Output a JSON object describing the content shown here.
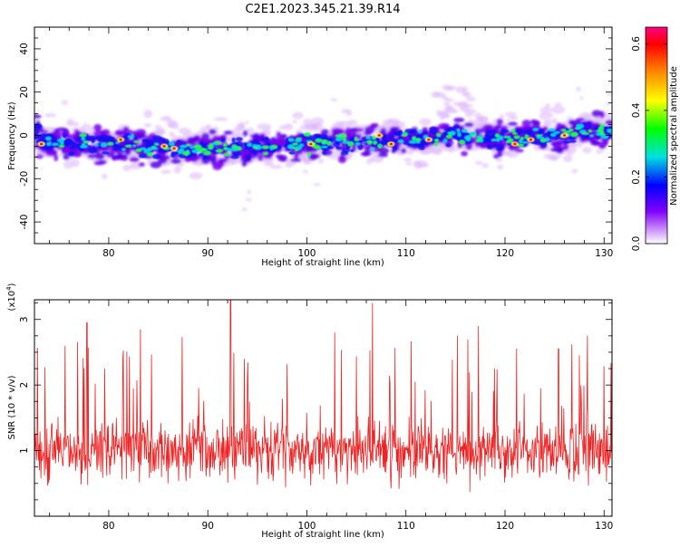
{
  "chart_data": [
    {
      "type": "heatmap",
      "title": "C2E1.2023.345.21.39.R14",
      "xlabel": "Height of straight line (km)",
      "ylabel": "Frequency (Hz)",
      "xlim": [
        72.5,
        130.8
      ],
      "ylim": [
        -50,
        50
      ],
      "xticks": [
        80,
        90,
        100,
        110,
        120,
        130
      ],
      "yticks": [
        -40,
        -20,
        0,
        20,
        40
      ],
      "colorbar": {
        "label": "Normalized spectral amplitude",
        "range": [
          0,
          0.65
        ],
        "ticks": [
          "0.0",
          "0.2",
          "0.4",
          "0.6"
        ],
        "colors": [
          "#ffffff",
          "#d8a8f8",
          "#8000ff",
          "#0000ff",
          "#00e0e0",
          "#00ff00",
          "#ffff00",
          "#ff8000",
          "#ff0000",
          "#ff0080"
        ]
      },
      "band_center_hz": [
        [
          73,
          -3
        ],
        [
          80,
          -4
        ],
        [
          90,
          -7
        ],
        [
          100,
          -4
        ],
        [
          110,
          -2
        ],
        [
          115,
          0
        ],
        [
          120,
          -2
        ],
        [
          130,
          2
        ]
      ]
    },
    {
      "type": "line",
      "xlabel": "Height of straight line (km)",
      "ylabel": "SNR (10 * v/v)",
      "multiplier": "(x10",
      "multiplier_exp": "4",
      "multiplier_close": ")",
      "xlim": [
        72.5,
        130.8
      ],
      "ylim": [
        0,
        3.3
      ],
      "xticks": [
        80,
        90,
        100,
        110,
        120,
        130
      ],
      "yticks": [
        1,
        2,
        3
      ],
      "color": "#ee2222",
      "peaks": [
        [
          77.8,
          2.95
        ],
        [
          83.2,
          2.85
        ],
        [
          92.3,
          3.35
        ],
        [
          102.8,
          2.8
        ],
        [
          106.6,
          3.25
        ],
        [
          117.3,
          2.9
        ],
        [
          115.2,
          2.75
        ],
        [
          125.4,
          2.55
        ],
        [
          128.3,
          2.75
        ]
      ]
    }
  ]
}
